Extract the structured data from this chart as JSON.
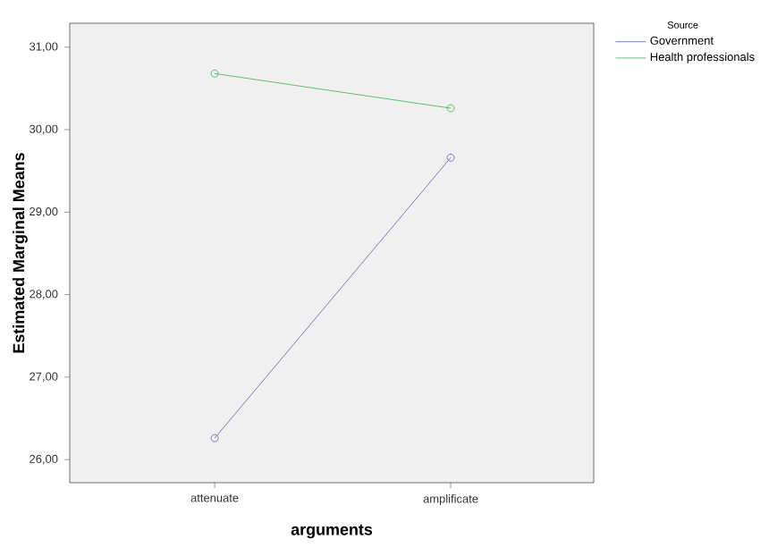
{
  "chart_data": {
    "type": "line",
    "xlabel": "arguments",
    "ylabel": "Estimated Marginal Means",
    "legend_title": "Source",
    "categories": [
      "attenuate",
      "amplificate"
    ],
    "series": [
      {
        "name": "Government",
        "color": "#5a62b0",
        "values": [
          26.26,
          29.66
        ]
      },
      {
        "name": "Health professionals",
        "color": "#3fb24f",
        "values": [
          30.68,
          30.26
        ]
      }
    ],
    "ylim": [
      25.72,
      31.29
    ],
    "yticks": [
      {
        "value": 26,
        "label": "26,00"
      },
      {
        "value": 27,
        "label": "27,00"
      },
      {
        "value": 28,
        "label": "28,00"
      },
      {
        "value": 29,
        "label": "29,00"
      },
      {
        "value": 30,
        "label": "30,00"
      },
      {
        "value": 31,
        "label": "31,00"
      }
    ],
    "grid": false,
    "legend": "top right",
    "marker": "circle",
    "line_style": "solid"
  }
}
